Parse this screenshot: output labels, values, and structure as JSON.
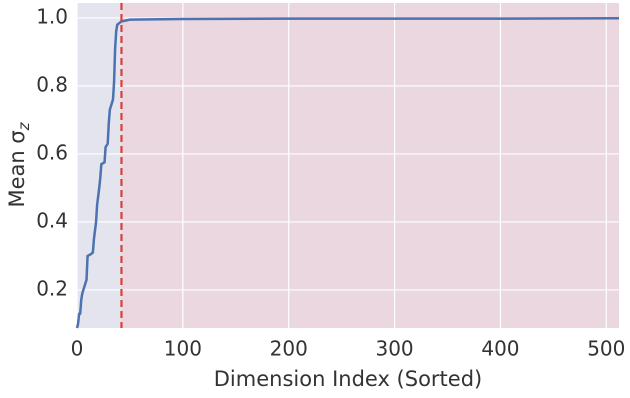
{
  "chart_data": {
    "type": "line",
    "xlabel": "Dimension Index (Sorted)",
    "ylabel": "Mean σ",
    "ylabel_subscript": "z",
    "xlim": [
      0,
      512
    ],
    "ylim": [
      0.088,
      1.044
    ],
    "xticks": [
      0,
      100,
      200,
      300,
      400,
      500
    ],
    "yticks": [
      0.2,
      0.4,
      0.6,
      0.8,
      {
        "value": 1,
        "label": "1.0"
      }
    ],
    "grid": true,
    "regions": [
      {
        "xlim": [
          0,
          42
        ],
        "color": "#e3e4ee"
      },
      {
        "xlim": [
          42,
          512
        ],
        "color": "#ead7df"
      }
    ],
    "vline": {
      "x": 42,
      "color": "#d9413a"
    },
    "series": [
      {
        "color": "#4c72b0",
        "x": [
          0,
          1,
          2,
          3,
          4,
          5,
          7,
          9,
          10,
          13,
          15,
          16,
          18,
          19,
          21,
          22,
          23,
          26,
          27,
          29,
          30,
          31,
          34,
          35,
          36,
          37,
          38,
          40,
          42,
          50,
          100,
          200,
          300,
          400,
          512
        ],
        "values": [
          0.088,
          0.1,
          0.13,
          0.13,
          0.17,
          0.19,
          0.21,
          0.23,
          0.3,
          0.305,
          0.31,
          0.35,
          0.4,
          0.45,
          0.5,
          0.53,
          0.57,
          0.575,
          0.62,
          0.63,
          0.69,
          0.73,
          0.76,
          0.81,
          0.91,
          0.96,
          0.98,
          0.985,
          0.99,
          0.995,
          0.997,
          0.998,
          0.998,
          0.998,
          0.999
        ]
      }
    ]
  }
}
